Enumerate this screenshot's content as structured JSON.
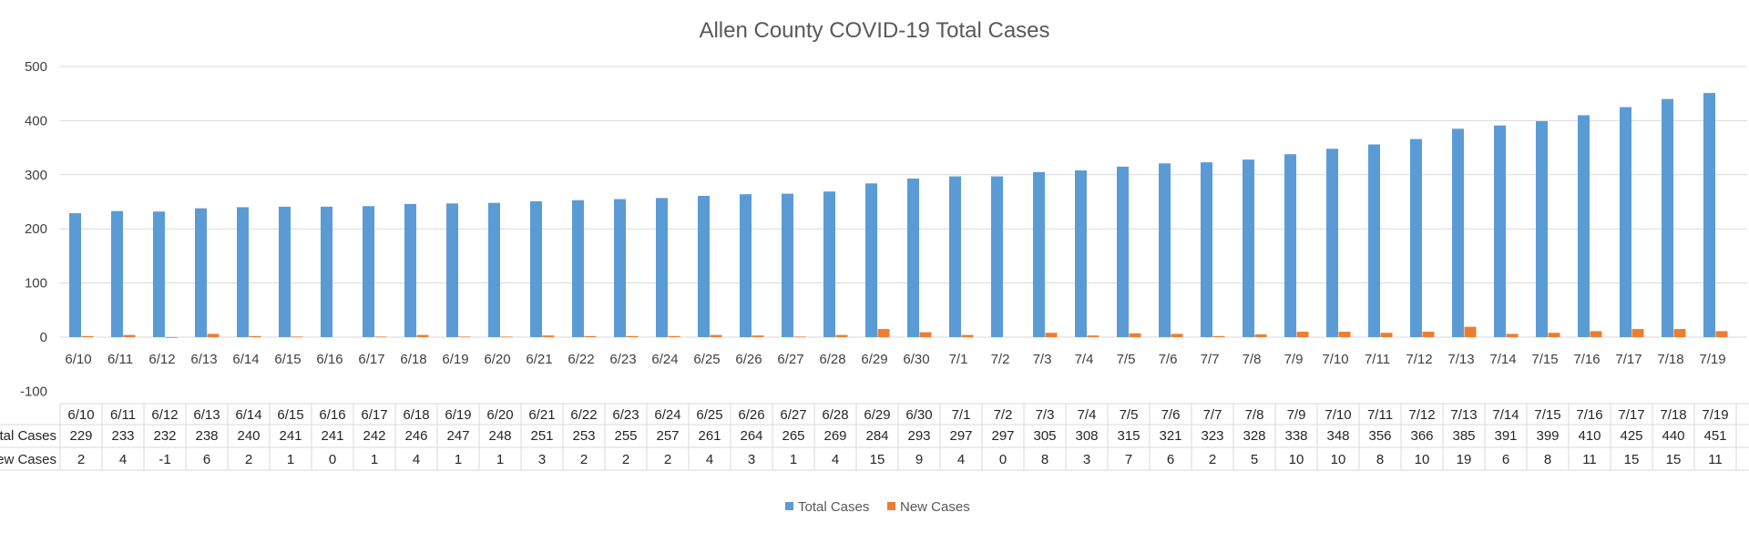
{
  "chart_data": {
    "type": "bar",
    "title": "Allen County COVID-19 Total Cases",
    "categories": [
      "6/10",
      "6/11",
      "6/12",
      "6/13",
      "6/14",
      "6/15",
      "6/16",
      "6/17",
      "6/18",
      "6/19",
      "6/20",
      "6/21",
      "6/22",
      "6/23",
      "6/24",
      "6/25",
      "6/26",
      "6/27",
      "6/28",
      "6/29",
      "6/30",
      "7/1",
      "7/2",
      "7/3",
      "7/4",
      "7/5",
      "7/6",
      "7/7",
      "7/8",
      "7/9",
      "7/10",
      "7/11",
      "7/12",
      "7/13",
      "7/14",
      "7/15",
      "7/16",
      "7/17",
      "7/18",
      "7/19"
    ],
    "series": [
      {
        "name": "Total Cases",
        "color": "#5b9bd5",
        "values": [
          229,
          233,
          232,
          238,
          240,
          241,
          241,
          242,
          246,
          247,
          248,
          251,
          253,
          255,
          257,
          261,
          264,
          265,
          269,
          284,
          293,
          297,
          297,
          305,
          308,
          315,
          321,
          323,
          328,
          338,
          348,
          356,
          366,
          385,
          391,
          399,
          410,
          425,
          440,
          451
        ]
      },
      {
        "name": "New Cases",
        "color": "#ed7d31",
        "values": [
          2,
          4,
          -1,
          6,
          2,
          1,
          0,
          1,
          4,
          1,
          1,
          3,
          2,
          2,
          2,
          4,
          3,
          1,
          4,
          15,
          9,
          4,
          0,
          8,
          3,
          7,
          6,
          2,
          5,
          10,
          10,
          8,
          10,
          19,
          6,
          8,
          11,
          15,
          15,
          11
        ]
      }
    ],
    "y_ticks": [
      "500",
      "400",
      "300",
      "200",
      "100",
      "0",
      "-100"
    ],
    "ylim": [
      -100,
      500
    ],
    "grid": true,
    "data_table": true,
    "legend_position": "bottom"
  }
}
